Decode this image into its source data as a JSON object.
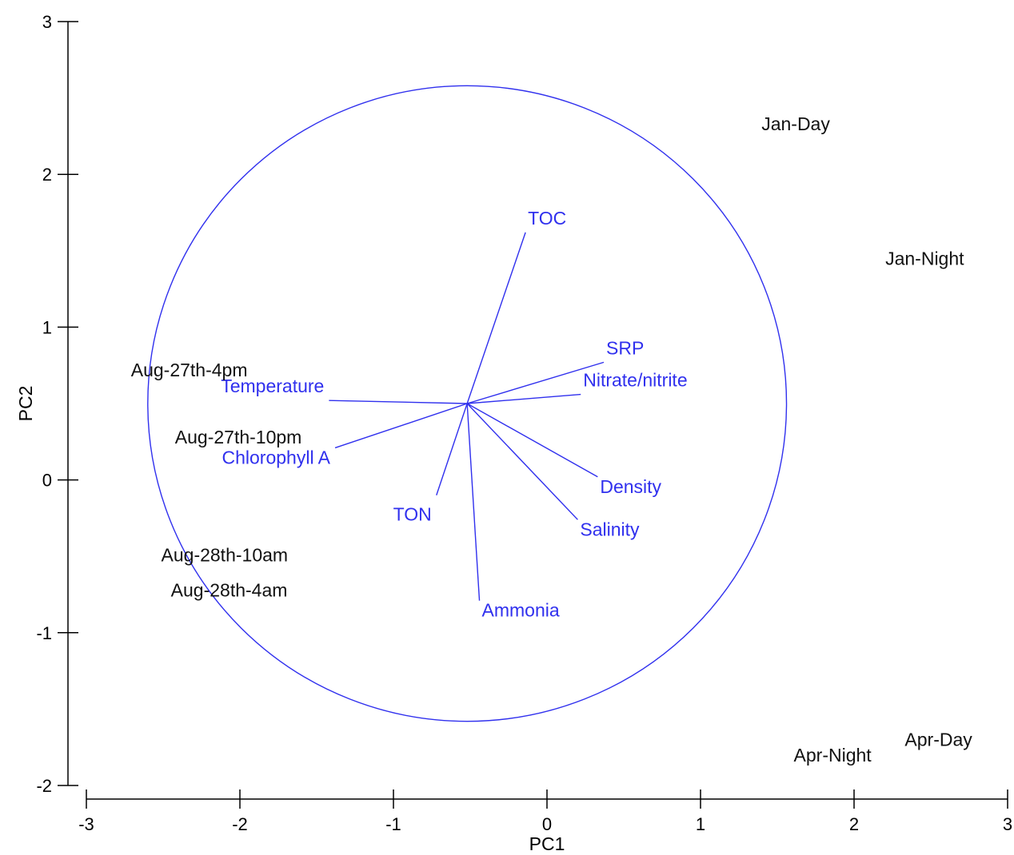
{
  "chart_data": {
    "type": "scatter",
    "xlabel": "PC1",
    "ylabel": "PC2",
    "xlim": [
      -3,
      3
    ],
    "ylim": [
      -2,
      3
    ],
    "xticks": [
      -3,
      -2,
      -1,
      0,
      1,
      2,
      3
    ],
    "yticks": [
      -2,
      -1,
      0,
      1,
      2,
      3
    ],
    "grid": false,
    "samples": [
      {
        "label": "Jan-Day",
        "x": 1.62,
        "y": 2.33
      },
      {
        "label": "Jan-Night",
        "x": 2.46,
        "y": 1.45
      },
      {
        "label": "Aug-27th-4pm",
        "x": -2.33,
        "y": 0.72
      },
      {
        "label": "Aug-27th-10pm",
        "x": -2.01,
        "y": 0.28
      },
      {
        "label": "Aug-28th-10am",
        "x": -2.1,
        "y": -0.49
      },
      {
        "label": "Aug-28th-4am",
        "x": -2.07,
        "y": -0.72
      },
      {
        "label": "Apr-Night",
        "x": 1.86,
        "y": -1.8
      },
      {
        "label": "Apr-Day",
        "x": 2.55,
        "y": -1.7
      }
    ],
    "vectors": {
      "origin": [
        -0.52,
        0.5
      ],
      "circle_radius": 2.08,
      "items": [
        {
          "name": "TOC",
          "x": -0.14,
          "y": 1.62
        },
        {
          "name": "SRP",
          "x": 0.37,
          "y": 0.77
        },
        {
          "name": "Nitrate/nitrite",
          "x": 0.22,
          "y": 0.56
        },
        {
          "name": "Density",
          "x": 0.33,
          "y": 0.02
        },
        {
          "name": "Salinity",
          "x": 0.2,
          "y": -0.26
        },
        {
          "name": "Ammonia",
          "x": -0.44,
          "y": -0.79
        },
        {
          "name": "TON",
          "x": -0.72,
          "y": -0.1
        },
        {
          "name": "Chlorophyll A",
          "x": -1.38,
          "y": 0.21
        },
        {
          "name": "Temperature",
          "x": -1.42,
          "y": 0.52
        }
      ]
    },
    "colors": {
      "vectors": "#3030ee",
      "samples": "#111111",
      "axes": "#000000"
    }
  }
}
